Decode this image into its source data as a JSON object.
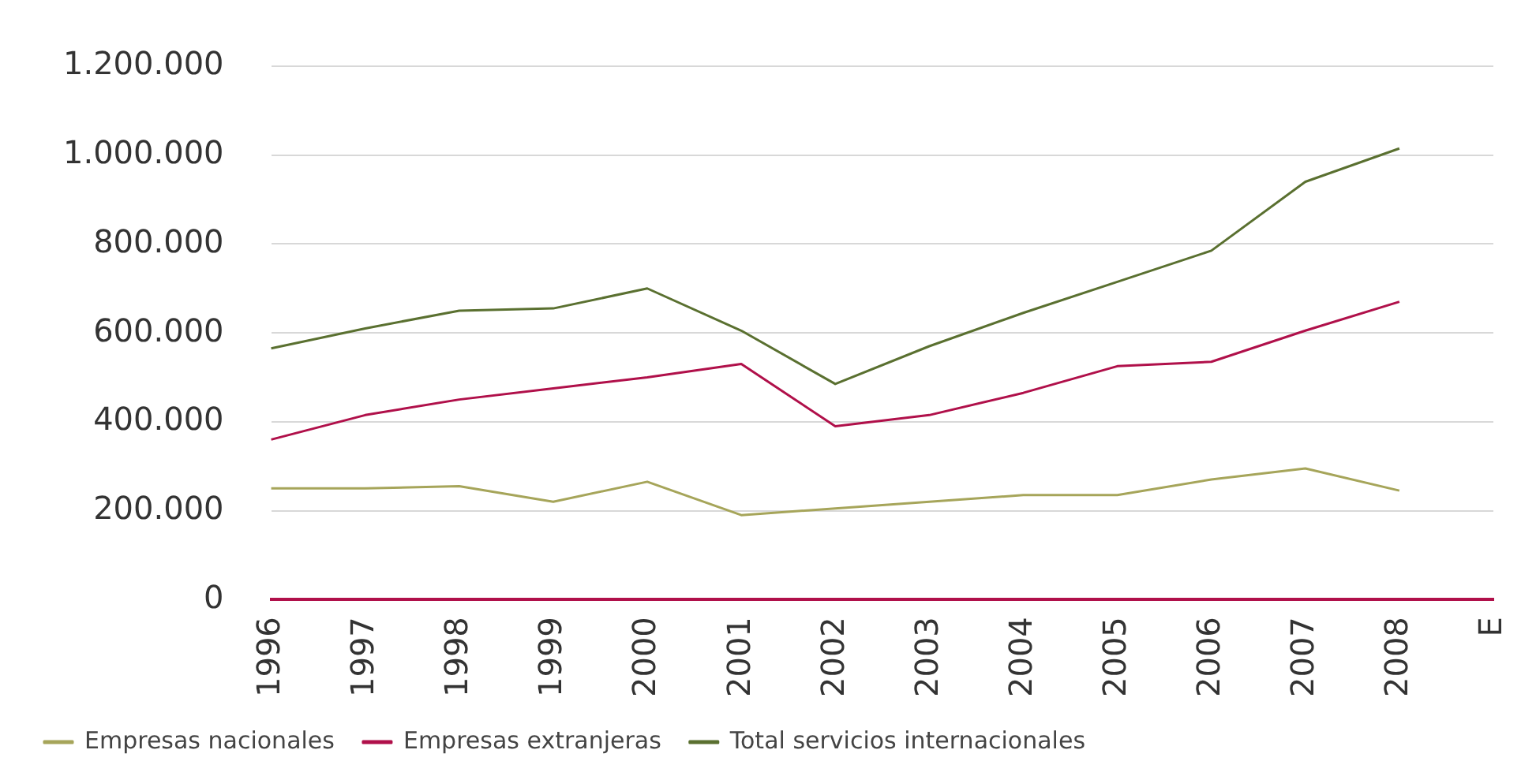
{
  "chart_data": {
    "type": "line",
    "categories": [
      "1996",
      "1997",
      "1998",
      "1999",
      "2000",
      "2001",
      "2002",
      "2003",
      "2004",
      "2005",
      "2006",
      "2007",
      "2008",
      "E"
    ],
    "series": [
      {
        "name": "Empresas nacionales",
        "color": "#a6a55a",
        "values": [
          250000,
          250000,
          255000,
          220000,
          265000,
          190000,
          205000,
          220000,
          235000,
          235000,
          270000,
          295000,
          245000,
          null
        ]
      },
      {
        "name": "Empresas extranjeras",
        "color": "#b0104a",
        "values": [
          360000,
          415000,
          450000,
          475000,
          500000,
          530000,
          390000,
          415000,
          465000,
          525000,
          535000,
          605000,
          670000,
          null
        ]
      },
      {
        "name": "Total servicios internacionales",
        "color": "#5a7030",
        "values": [
          565000,
          610000,
          650000,
          655000,
          700000,
          605000,
          485000,
          570000,
          645000,
          715000,
          785000,
          940000,
          1015000,
          null
        ]
      }
    ],
    "ylim": [
      0,
      1200000
    ],
    "yticks": [
      {
        "value": 0,
        "label": "0"
      },
      {
        "value": 200000,
        "label": "200.000"
      },
      {
        "value": 400000,
        "label": "400.000"
      },
      {
        "value": 600000,
        "label": "600.000"
      },
      {
        "value": 800000,
        "label": "800.000"
      },
      {
        "value": 1000000,
        "label": "1.000.000"
      },
      {
        "value": 1200000,
        "label": "1.200.000"
      }
    ],
    "grid": "y",
    "legend": "bottom",
    "marker": "none",
    "line_style": "solid"
  }
}
